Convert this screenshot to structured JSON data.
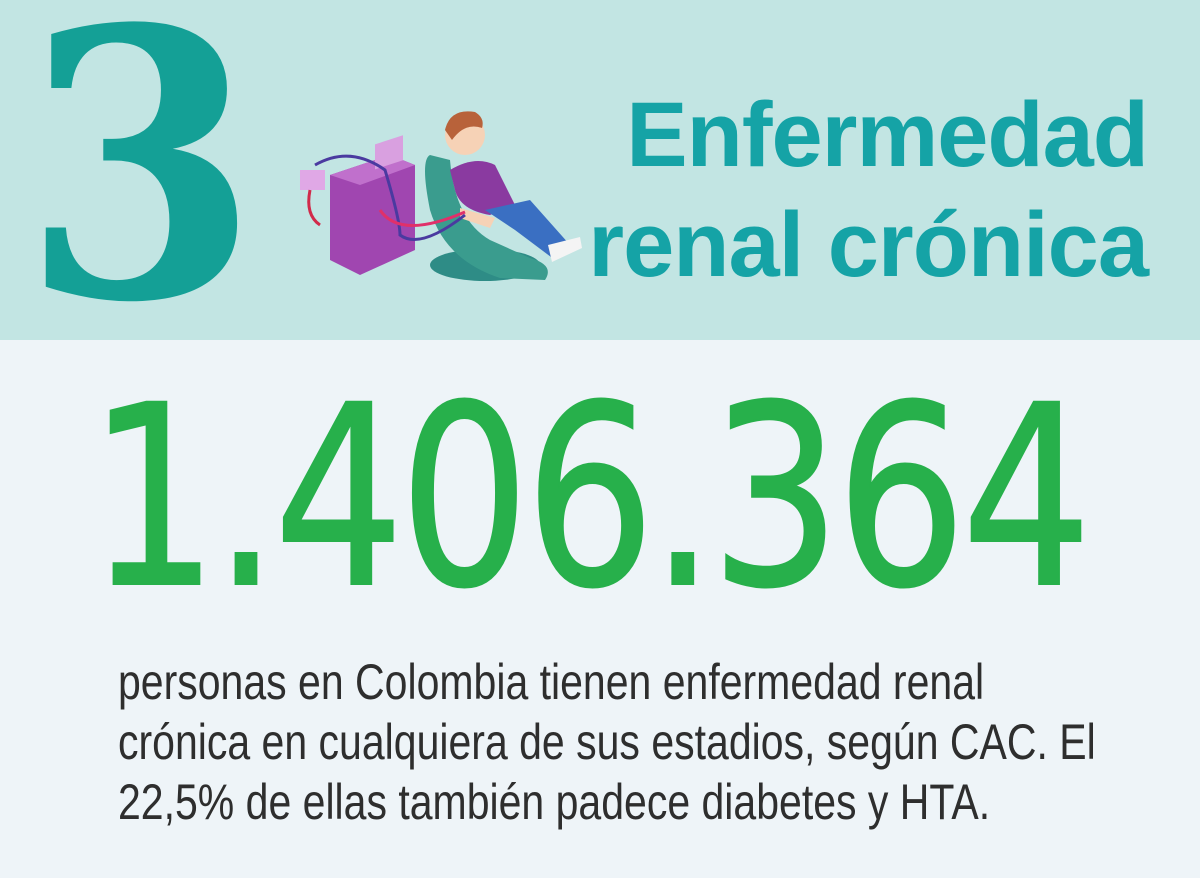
{
  "header": {
    "number": "3",
    "title_lines": [
      "Enfermedad",
      "renal crónica"
    ],
    "illustration": "dialysis-patient-illustration",
    "colors": {
      "background": "#c2e5e3",
      "number": "#14a096",
      "title": "#15a3a6"
    }
  },
  "stat": {
    "value": "1.406.364",
    "color": "#27b04b",
    "description_lines": [
      "personas en Colombia tienen enfermedad renal",
      "crónica en cualquiera de sus estadios, según CAC. El",
      "22,5% de ellas también padece diabetes y HTA."
    ]
  }
}
